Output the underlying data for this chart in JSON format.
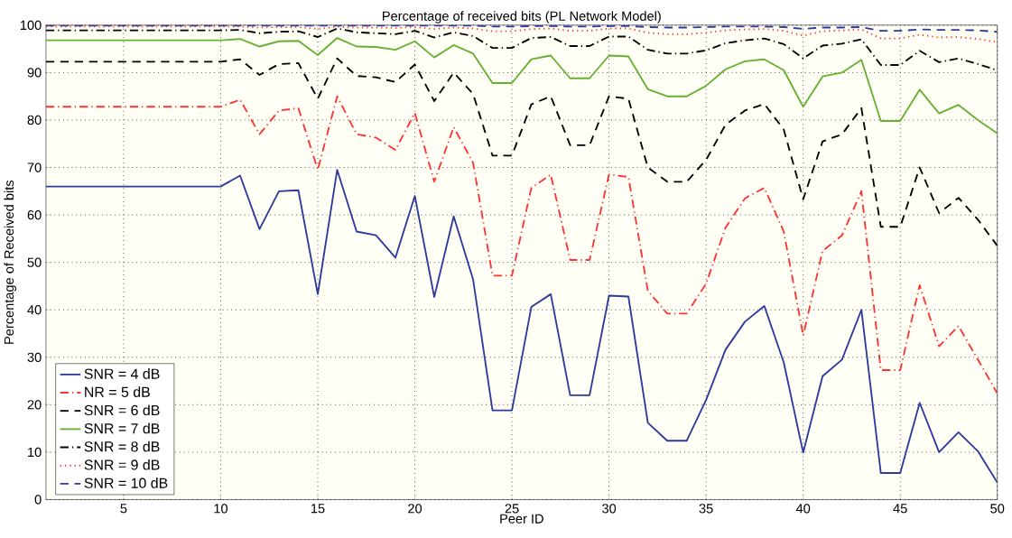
{
  "chart_data": {
    "type": "line",
    "title": "Percentage of received bits (PL Network Model)",
    "xlabel": "Peer ID",
    "ylabel": "Percentage of Received bits",
    "x": [
      1,
      2,
      3,
      4,
      5,
      6,
      7,
      8,
      9,
      10,
      11,
      12,
      13,
      14,
      15,
      16,
      17,
      18,
      19,
      20,
      21,
      22,
      23,
      24,
      25,
      26,
      27,
      28,
      29,
      30,
      31,
      32,
      33,
      34,
      35,
      36,
      37,
      38,
      39,
      40,
      41,
      42,
      43,
      44,
      45,
      46,
      47,
      48,
      49,
      50
    ],
    "xlim": [
      1,
      50
    ],
    "xticks": [
      5,
      10,
      15,
      20,
      25,
      30,
      35,
      40,
      45,
      50
    ],
    "ylim": [
      0,
      100
    ],
    "yticks": [
      0,
      10,
      20,
      30,
      40,
      50,
      60,
      70,
      80,
      90,
      100
    ],
    "grid": true,
    "legend": "bottom left",
    "series": [
      {
        "name": "SNR = 4 dB",
        "color": "#2e3a9c",
        "line_style": "solid",
        "values": [
          66,
          66,
          66,
          66,
          66,
          66,
          66,
          66,
          66,
          66,
          68.3,
          57,
          65,
          65.2,
          43.3,
          69.5,
          56.5,
          55.7,
          51,
          64,
          42.7,
          59.7,
          46.4,
          18.8,
          18.8,
          40.6,
          43.3,
          22,
          22,
          43,
          42.8,
          16.2,
          12.4,
          12.4,
          21,
          31.6,
          37.5,
          40.8,
          28.9,
          9.9,
          26,
          29.5,
          40,
          5.6,
          5.6,
          20.4,
          10,
          14.2,
          10.2,
          3.6
        ]
      },
      {
        "name": "NR = 5 dB",
        "color": "#ff3333",
        "line_style": "dashdot",
        "values": [
          82.8,
          82.8,
          82.8,
          82.8,
          82.8,
          82.8,
          82.8,
          82.8,
          82.8,
          82.8,
          84.3,
          77,
          82,
          82.5,
          69.5,
          85,
          77,
          76.3,
          73.7,
          81.5,
          67,
          78.5,
          71,
          47.2,
          47.2,
          65.7,
          68.5,
          50.5,
          50.5,
          68.5,
          68,
          44,
          39.2,
          39.2,
          45.5,
          57.3,
          63.5,
          65.7,
          56.5,
          34.6,
          52.4,
          55.7,
          65,
          27.3,
          27.3,
          45.2,
          32.3,
          36.6,
          29.5,
          22.4
        ]
      },
      {
        "name": "SNR = 6 dB",
        "color": "#000000",
        "line_style": "dashed",
        "values": [
          92.3,
          92.3,
          92.3,
          92.3,
          92.3,
          92.3,
          92.3,
          92.3,
          92.3,
          92.3,
          92.8,
          89.5,
          91.8,
          92,
          84.5,
          93,
          89.3,
          89,
          88,
          91.7,
          84,
          90,
          85.5,
          72.5,
          72.5,
          83.3,
          85,
          74.7,
          74.7,
          85,
          84.5,
          70,
          67,
          67,
          71.6,
          79,
          82,
          83.4,
          78,
          63.3,
          75.5,
          77,
          82.5,
          57.5,
          57.5,
          70,
          60.4,
          63.6,
          59,
          53.5
        ]
      },
      {
        "name": "SNR = 7 dB",
        "color": "#66b032",
        "line_style": "solid",
        "values": [
          96.8,
          96.8,
          96.8,
          96.8,
          96.8,
          96.8,
          96.8,
          96.8,
          96.8,
          96.8,
          97.1,
          95.5,
          96.6,
          96.7,
          93.7,
          97.3,
          95.5,
          95.4,
          94.8,
          96.6,
          93.2,
          95.8,
          94,
          87.8,
          87.8,
          92.8,
          93.6,
          88.8,
          88.8,
          93.6,
          93.4,
          86.5,
          85,
          85,
          87.2,
          90.7,
          92.4,
          92.8,
          90.5,
          82.8,
          89.2,
          90,
          92.7,
          79.8,
          79.8,
          86.4,
          81.4,
          83.2,
          80,
          77.2
        ]
      },
      {
        "name": "SNR = 8 dB",
        "color": "#000000",
        "line_style": "dashdot",
        "values": [
          98.9,
          98.9,
          98.9,
          98.9,
          98.9,
          98.9,
          98.9,
          98.9,
          98.9,
          98.9,
          99,
          98.3,
          98.6,
          98.7,
          97.5,
          99.3,
          98.5,
          98.3,
          98.1,
          98.8,
          97.4,
          98.5,
          97.7,
          95.2,
          95.2,
          97.3,
          97.5,
          95.6,
          95.6,
          97.6,
          97.6,
          94.8,
          94,
          94,
          94.7,
          96.2,
          96.8,
          97.2,
          96,
          93,
          95.7,
          96.1,
          97,
          91.6,
          91.6,
          94.6,
          92.2,
          93,
          91.8,
          90.5
        ]
      },
      {
        "name": "SNR = 9 dB",
        "color": "#ff3333",
        "line_style": "dotted",
        "values": [
          99.7,
          99.7,
          99.7,
          99.7,
          99.7,
          99.7,
          99.7,
          99.7,
          99.7,
          99.7,
          99.7,
          99.5,
          99.6,
          99.6,
          99.2,
          99.7,
          99.5,
          99.5,
          99.4,
          99.6,
          99.2,
          99.5,
          99.3,
          98.7,
          98.7,
          99.2,
          99.3,
          98.8,
          98.8,
          99.3,
          99.3,
          98.4,
          98.1,
          98.1,
          98.4,
          98.9,
          99.1,
          99.2,
          98.8,
          97.8,
          98.7,
          98.9,
          99.1,
          97.2,
          97.2,
          98,
          97.4,
          97.5,
          97.1,
          96.4
        ]
      },
      {
        "name": "SNR = 10 dB",
        "color": "#2e3a9c",
        "line_style": "dashed",
        "values": [
          99.9,
          99.9,
          99.9,
          99.9,
          99.9,
          99.9,
          99.9,
          99.9,
          99.9,
          99.9,
          99.9,
          99.9,
          99.9,
          99.9,
          99.9,
          99.9,
          99.9,
          99.9,
          99.9,
          99.9,
          99.9,
          99.9,
          99.9,
          99.7,
          99.7,
          99.8,
          99.8,
          99.7,
          99.7,
          99.8,
          99.8,
          99.6,
          99.5,
          99.5,
          99.6,
          99.7,
          99.7,
          99.7,
          99.6,
          99.2,
          99.5,
          99.5,
          99.6,
          98.8,
          98.8,
          99.1,
          99,
          99,
          98.9,
          98.6
        ]
      }
    ]
  }
}
